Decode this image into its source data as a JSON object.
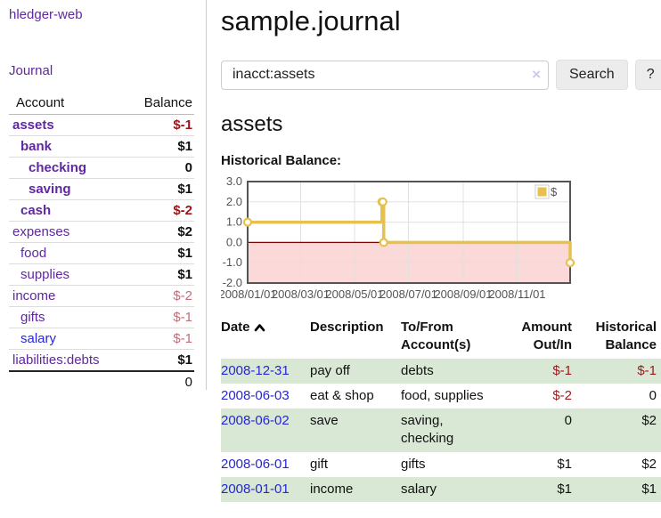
{
  "sidebar": {
    "brand": "hledger-web",
    "nav_journal": "Journal",
    "accounts_table": {
      "headers": {
        "account": "Account",
        "balance": "Balance"
      },
      "rows": [
        {
          "name": "assets",
          "level": 1,
          "bold": true,
          "link": "purple",
          "balance": "$-1",
          "bal_style": "neg-strong"
        },
        {
          "name": "bank",
          "level": 2,
          "bold": true,
          "link": "purple",
          "balance": "$1",
          "bal_style": "pos"
        },
        {
          "name": "checking",
          "level": 3,
          "bold": true,
          "link": "purple",
          "balance": "0",
          "bal_style": "pos"
        },
        {
          "name": "saving",
          "level": 3,
          "bold": true,
          "link": "purple",
          "balance": "$1",
          "bal_style": "pos"
        },
        {
          "name": "cash",
          "level": 2,
          "bold": true,
          "link": "purple",
          "balance": "$-2",
          "bal_style": "neg-strong"
        },
        {
          "name": "expenses",
          "level": 1,
          "bold": false,
          "link": "purple",
          "balance": "$2",
          "bal_style": "pos"
        },
        {
          "name": "food",
          "level": 2,
          "bold": false,
          "link": "purple",
          "balance": "$1",
          "bal_style": "pos"
        },
        {
          "name": "supplies",
          "level": 2,
          "bold": false,
          "link": "purple",
          "balance": "$1",
          "bal_style": "pos"
        },
        {
          "name": "income",
          "level": 1,
          "bold": false,
          "link": "purple",
          "balance": "$-2",
          "bal_style": "neg-soft"
        },
        {
          "name": "gifts",
          "level": 2,
          "bold": false,
          "link": "purple",
          "balance": "$-1",
          "bal_style": "neg-soft"
        },
        {
          "name": "salary",
          "level": 2,
          "bold": false,
          "link": "blue",
          "balance": "$-1",
          "bal_style": "neg-soft"
        },
        {
          "name": "liabilities:debts",
          "level": 1,
          "bold": false,
          "link": "purple",
          "balance": "$1",
          "bal_style": "pos"
        }
      ],
      "total": "0"
    }
  },
  "header": {
    "title": "sample.journal"
  },
  "search": {
    "value": "inacct:assets",
    "clear_icon": "×",
    "button_label": "Search",
    "help_label": "?"
  },
  "account_page": {
    "heading": "assets"
  },
  "chart_data": {
    "type": "line",
    "step": true,
    "title": "Historical Balance:",
    "series": [
      {
        "name": "$",
        "points": [
          [
            "2008-01-01",
            1
          ],
          [
            "2008-06-01",
            2
          ],
          [
            "2008-06-02",
            2
          ],
          [
            "2008-06-03",
            0
          ],
          [
            "2008-12-31",
            -1
          ]
        ]
      }
    ],
    "x_range": [
      "2008-01-01",
      "2008-12-31"
    ],
    "ylim": [
      -2,
      3
    ],
    "y_ticks": [
      3,
      2,
      1,
      0,
      -1,
      -2
    ],
    "x_ticks": [
      {
        "date": "2008-01-01",
        "label": "2008/01/01"
      },
      {
        "date": "2008-03-01",
        "label": "2008/03/01"
      },
      {
        "date": "2008-05-01",
        "label": "2008/05/01"
      },
      {
        "date": "2008-07-01",
        "label": "2008/07/01"
      },
      {
        "date": "2008-09-01",
        "label": "2008/09/01"
      },
      {
        "date": "2008-11-01",
        "label": "2008/11/01"
      }
    ],
    "legend_position": "top-right",
    "grid": true,
    "colors": {
      "series": "#e6c14b",
      "negative_region": "#fcd9d9",
      "zero_line": "#7d0000",
      "grid": "#e0e0e0",
      "border": "#545454"
    }
  },
  "register": {
    "headers": {
      "date": "Date",
      "description": "Description",
      "accounts": "To/From\nAccount(s)",
      "amount": "Amount\nOut/In",
      "balance": "Historical\nBalance"
    },
    "rows": [
      {
        "date": "2008-12-31",
        "description": "pay off",
        "accounts": "debts",
        "amount": "$-1",
        "amount_negative": true,
        "balance": "$-1",
        "balance_negative": true
      },
      {
        "date": "2008-06-03",
        "description": "eat & shop",
        "accounts": "food, supplies",
        "amount": "$-2",
        "amount_negative": true,
        "balance": "0",
        "balance_negative": false
      },
      {
        "date": "2008-06-02",
        "description": "save",
        "accounts": "saving,\nchecking",
        "amount": "0",
        "amount_negative": false,
        "balance": "$2",
        "balance_negative": false
      },
      {
        "date": "2008-06-01",
        "description": "gift",
        "accounts": "gifts",
        "amount": "$1",
        "amount_negative": false,
        "balance": "$2",
        "balance_negative": false
      },
      {
        "date": "2008-01-01",
        "description": "income",
        "accounts": "salary",
        "amount": "$1",
        "amount_negative": false,
        "balance": "$1",
        "balance_negative": false
      }
    ]
  },
  "colors": {
    "link_purple": "#5f28a0",
    "link_blue": "#2626d6",
    "negative_strong": "#9e1414",
    "negative_soft": "#bf6e78",
    "row_stripe_green": "#d9e7d5"
  }
}
